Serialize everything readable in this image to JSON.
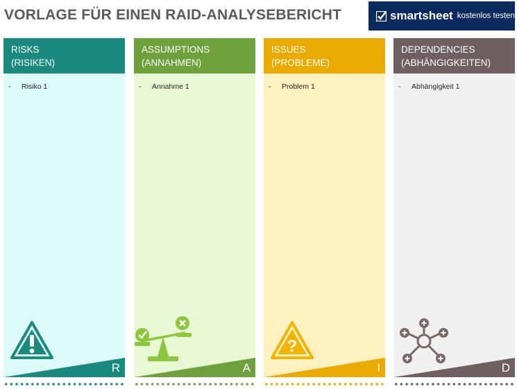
{
  "title": "VORLAGE FÜR EINEN RAID-ANALYSEBERICHT",
  "brand": {
    "name": "smartsheet",
    "cta": "kostenlos testen"
  },
  "columns": [
    {
      "title": "RISKS",
      "subtitle": "(RISIKEN)",
      "item": "Risiko 1",
      "letter": "R",
      "icon": "warning-icon",
      "color": "#1a8a7c",
      "bg": "#dcfafa"
    },
    {
      "title": "ASSUMPTIONS",
      "subtitle": "(ANNAHMEN)",
      "item": "Annahme 1",
      "letter": "A",
      "icon": "balance-scale-icon",
      "color": "#6ea13c",
      "bg": "#e8f8d4"
    },
    {
      "title": "ISSUES",
      "subtitle": "(PROBLEME)",
      "item": "Problem 1",
      "letter": "I",
      "icon": "question-warning-icon",
      "color": "#eaaa00",
      "bg": "#fdf1c0"
    },
    {
      "title": "DEPENDENCIES",
      "subtitle": "(ABHÄNGIGKEITEN)",
      "item": "Abhängigkeit 1",
      "letter": "D",
      "icon": "network-nodes-icon",
      "color": "#6e6060",
      "bg": "#f1f0f0"
    }
  ]
}
